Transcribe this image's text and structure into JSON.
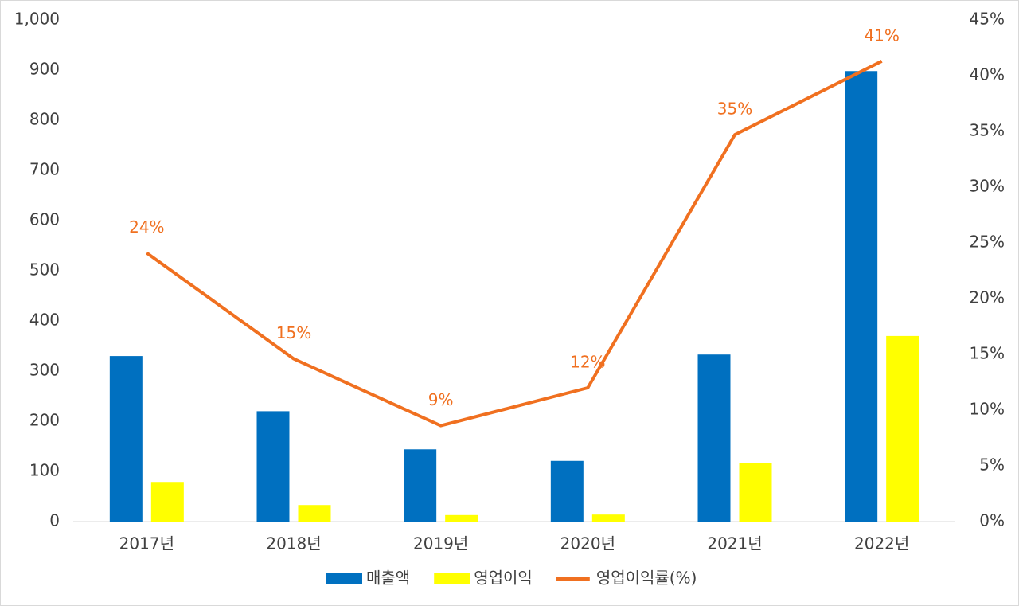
{
  "chart_data": {
    "type": "bar-line",
    "categories": [
      "2017년",
      "2018년",
      "2019년",
      "2020년",
      "2021년",
      "2022년"
    ],
    "series": [
      {
        "name": "매출액",
        "type": "bar",
        "color": "#0070c0",
        "values": [
          330,
          220,
          144,
          121,
          333,
          898
        ]
      },
      {
        "name": "영업이익",
        "type": "bar",
        "color": "#ffff00",
        "values": [
          79,
          33,
          13,
          14,
          117,
          370
        ]
      },
      {
        "name": "영업이익률(%)",
        "type": "line",
        "axis": "y2",
        "color": "#f07020",
        "values": [
          24.1,
          14.6,
          8.6,
          12.0,
          34.7,
          41.3
        ],
        "value_labels": [
          "24%",
          "15%",
          "9%",
          "12%",
          "35%",
          "41%"
        ]
      }
    ],
    "ylim": [
      0,
      1000
    ],
    "yticks": [
      0,
      100,
      200,
      300,
      400,
      500,
      600,
      700,
      800,
      900,
      {
        "value": 1000,
        "label": "1,000"
      }
    ],
    "y2lim": [
      0,
      45
    ],
    "y2ticks": [
      {
        "value": 0,
        "label": "0%"
      },
      {
        "value": 5,
        "label": "5%"
      },
      {
        "value": 10,
        "label": "10%"
      },
      {
        "value": 15,
        "label": "15%"
      },
      {
        "value": 20,
        "label": "20%"
      },
      {
        "value": 25,
        "label": "25%"
      },
      {
        "value": 30,
        "label": "30%"
      },
      {
        "value": 35,
        "label": "35%"
      },
      {
        "value": 40,
        "label": "40%"
      },
      {
        "value": 45,
        "label": "45%"
      }
    ],
    "grid": false,
    "legend": "bottom"
  }
}
